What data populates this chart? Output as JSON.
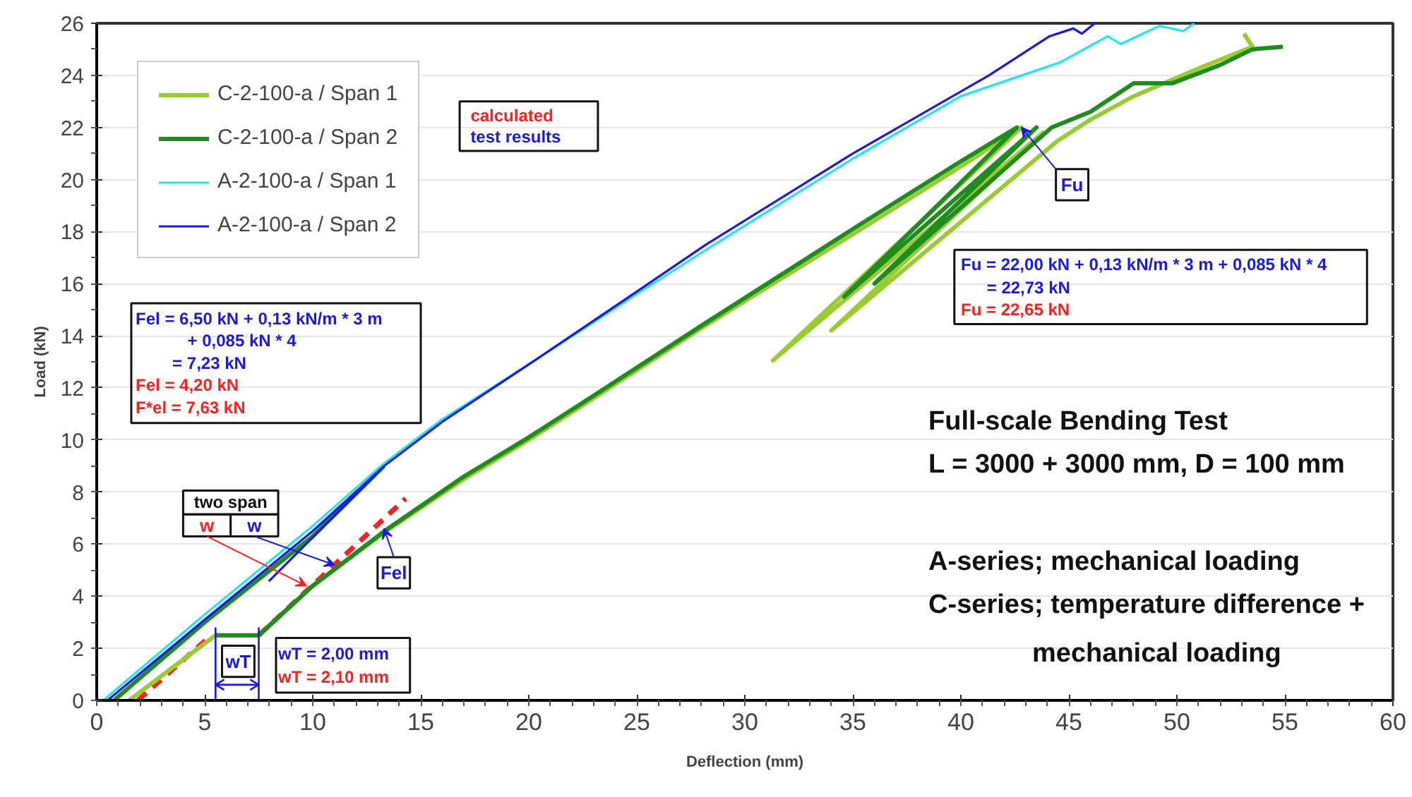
{
  "chart_data": {
    "type": "line",
    "ref_lines": [
      {
        "axis": "x",
        "value": 5.5,
        "color": "#1a1ae6"
      },
      {
        "axis": "x",
        "value": 7.5,
        "color": "#1a1ae6"
      }
    ],
    "xlabel": "Deflection (mm)",
    "ylabel": "Load (kN)",
    "xlim": [
      0,
      60
    ],
    "ylim": [
      0,
      26
    ],
    "xticks": [
      0,
      5,
      10,
      15,
      20,
      25,
      30,
      35,
      40,
      45,
      50,
      55,
      60
    ],
    "yticks": [
      0,
      2,
      4,
      6,
      8,
      10,
      12,
      14,
      16,
      18,
      20,
      22,
      24,
      26
    ],
    "grid": "y",
    "legend": "top left",
    "series": [
      {
        "name": "C-2-100-a / Span 1",
        "color": "#99cc33",
        "x": [
          1.5,
          5.5,
          7.5,
          10,
          13.4,
          17,
          20,
          23,
          28.2,
          35,
          40,
          42.8,
          31.3,
          43.8,
          34.0,
          44.5,
          46,
          48,
          51.1,
          53.5,
          53.1
        ],
        "values": [
          0,
          2.5,
          2.5,
          4.4,
          6.5,
          8.5,
          10.0,
          11.6,
          14.4,
          17.9,
          20.5,
          22.0,
          13.05,
          21.8,
          14.2,
          21.5,
          22.3,
          23.2,
          24.3,
          25.1,
          25.6
        ]
      },
      {
        "name": "C-2-100-a / Span 2",
        "color": "#1e8c1e",
        "x": [
          0.8,
          5,
          10,
          13.3,
          null,
          5.5,
          7.5,
          10,
          13.4,
          17,
          20,
          23,
          28.2,
          35,
          40,
          42.6,
          34.6,
          43.5,
          36,
          44.2,
          46,
          48,
          49.8,
          52,
          53.5,
          54.9
        ],
        "values": [
          0,
          3.0,
          6.3,
          9.0,
          null,
          2.5,
          2.5,
          4.4,
          6.55,
          8.6,
          10.1,
          11.7,
          14.5,
          18.1,
          20.7,
          22.0,
          15.5,
          22.0,
          16.0,
          22.0,
          22.6,
          23.7,
          23.7,
          24.4,
          25.0,
          25.1
        ]
      },
      {
        "name": "A-2-100-a / Span 1",
        "color": "#22e5ee",
        "x": [
          0.3,
          5,
          10,
          13.3,
          16,
          20,
          25,
          28.2,
          35,
          40,
          44.6,
          46.8,
          47.4,
          49.2,
          50.3,
          50.8
        ],
        "values": [
          0,
          3.3,
          6.7,
          9.1,
          10.8,
          12.9,
          15.6,
          17.3,
          20.8,
          23.2,
          24.5,
          25.5,
          25.2,
          25.9,
          25.7,
          26
        ]
      },
      {
        "name": "A-2-100-a / Span 2",
        "color": "#1a1ae6",
        "x": [
          0.5,
          5,
          10,
          13.3,
          8,
          13.3,
          16,
          20,
          25,
          28.2,
          35,
          41.3,
          44.1,
          45.2,
          45.6,
          46.2
        ],
        "values": [
          0,
          3.1,
          6.5,
          9.0,
          4.6,
          9.0,
          10.7,
          12.9,
          15.7,
          17.5,
          21.0,
          24.0,
          25.5,
          25.8,
          25.6,
          26
        ]
      },
      {
        "color": "#ff2020",
        "line_style": "dashed",
        "x": [
          1.9,
          5.3,
          null,
          7.5,
          14.3
        ],
        "values": [
          0,
          2.5,
          null,
          2.5,
          7.75
        ]
      }
    ],
    "annotations": [
      "calculated",
      "test results",
      "Fel  = 6,50 kN + 0,13 kN/m * 3 m",
      "+ 0,085 kN * 4",
      "= 7,23 kN",
      "Fel  = 4,20 kN",
      "F*el = 7,63 kN",
      "Fu = 22,00 kN + 0,13 kN/m * 3 m + 0,085 kN * 4",
      "= 22,73 kN",
      "Fu = 22,65 kN",
      "Full-scale Bending Test",
      "L = 3000 + 3000 mm, D = 100 mm",
      "A-series; mechanical loading",
      "C-series; temperature difference +",
      "mechanical loading",
      "two span",
      {
        "text": "w",
        "x": 9.7,
        "y": 4.4
      },
      {
        "text": "w",
        "x": 11.0,
        "y": 5.2
      },
      {
        "text": "Fu",
        "x": 42.8,
        "y": 22.0
      },
      {
        "text": "Fel",
        "x": 13.3,
        "y": 6.6
      },
      "wT",
      "wT = 2,00 mm",
      "wT = 2,10 mm"
    ]
  }
}
